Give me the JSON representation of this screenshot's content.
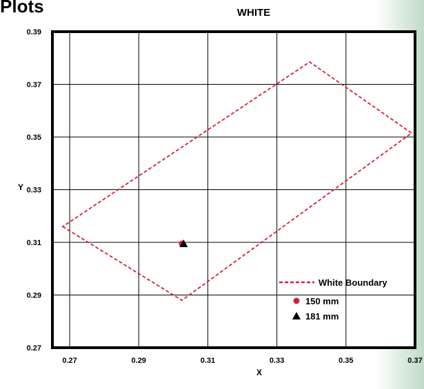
{
  "page": {
    "heading": "Plots"
  },
  "chart_data": {
    "type": "scatter",
    "title": "WHITE",
    "xlabel": "X",
    "ylabel": "Y",
    "xlim": [
      0.265,
      0.37
    ],
    "ylim": [
      0.27,
      0.39
    ],
    "x_ticks": [
      "0.27",
      "0.29",
      "0.31",
      "0.33",
      "0.35",
      "0.37"
    ],
    "x_tick_values": [
      0.27,
      0.29,
      0.31,
      0.33,
      0.35,
      0.37
    ],
    "y_ticks": [
      "0.27",
      "0.29",
      "0.31",
      "0.33",
      "0.35",
      "0.37",
      "0.39"
    ],
    "y_tick_values": [
      0.27,
      0.29,
      0.31,
      0.33,
      0.35,
      0.37,
      0.39
    ],
    "grid": true,
    "legend_position": "bottom-right",
    "series": [
      {
        "name": "White Boundary",
        "kind": "polygon",
        "style": "dashed",
        "color": "#d0213b",
        "points": [
          [
            0.268,
            0.316
          ],
          [
            0.3025,
            0.288
          ],
          [
            0.369,
            0.3515
          ],
          [
            0.3395,
            0.3785
          ]
        ]
      },
      {
        "name": "150 mm",
        "kind": "point",
        "marker": "circle",
        "color": "#d0213b",
        "points": [
          [
            0.3025,
            0.3095
          ]
        ]
      },
      {
        "name": "181 mm",
        "kind": "point",
        "marker": "triangle",
        "color": "#000000",
        "points": [
          [
            0.303,
            0.3095
          ]
        ]
      }
    ]
  }
}
